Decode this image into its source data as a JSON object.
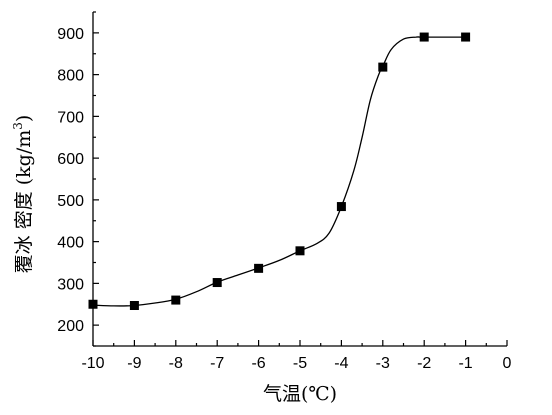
{
  "chart_data": {
    "type": "line",
    "title": "",
    "xlabel": "气温(℃)",
    "ylabel": "覆冰 密度 (kg/m3)",
    "ylabel_parts": {
      "main": "覆冰 密度 (kg/m",
      "sup": "3",
      "close": ")"
    },
    "xlim": [
      -10,
      0
    ],
    "ylim": [
      150,
      950
    ],
    "xticks": [
      -10,
      -9,
      -8,
      -7,
      -6,
      -5,
      -4,
      -3,
      -2,
      -1,
      0
    ],
    "yticks": [
      200,
      300,
      400,
      500,
      600,
      700,
      800,
      900
    ],
    "grid": false,
    "legend": "none",
    "series": [
      {
        "marker": "square",
        "x": [
          -10,
          -9,
          -8,
          -7,
          -6,
          -5,
          -4,
          -3,
          -2,
          -1
        ],
        "y": [
          250,
          247,
          260,
          302,
          336,
          378,
          484,
          818,
          890,
          890
        ]
      }
    ],
    "curve": [
      [
        -10.2,
        248
      ],
      [
        -9.5,
        246
      ],
      [
        -9.0,
        247
      ],
      [
        -8.5,
        253
      ],
      [
        -8.0,
        262
      ],
      [
        -7.5,
        280
      ],
      [
        -7.0,
        303
      ],
      [
        -6.5,
        320
      ],
      [
        -6.0,
        337
      ],
      [
        -5.5,
        355
      ],
      [
        -5.0,
        378
      ],
      [
        -4.6,
        395
      ],
      [
        -4.3,
        420
      ],
      [
        -4.0,
        484
      ],
      [
        -3.7,
        570
      ],
      [
        -3.5,
        650
      ],
      [
        -3.3,
        740
      ],
      [
        -3.1,
        800
      ],
      [
        -3.0,
        820
      ],
      [
        -2.8,
        860
      ],
      [
        -2.5,
        885
      ],
      [
        -2.2,
        890
      ],
      [
        -2.0,
        890
      ],
      [
        -1.0,
        890
      ]
    ]
  }
}
